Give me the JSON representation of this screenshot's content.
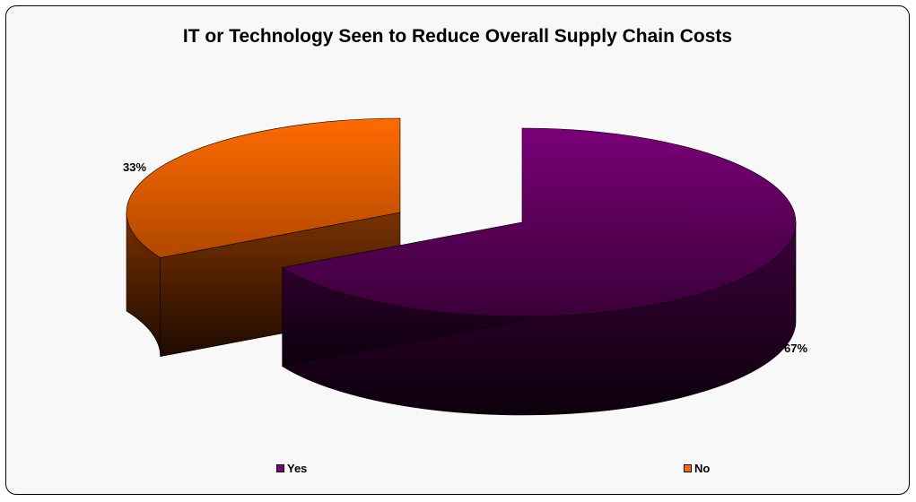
{
  "chart_data": {
    "type": "pie",
    "title": "IT or Technology Seen to Reduce Overall Supply Chain Costs",
    "categories": [
      "Yes",
      "No"
    ],
    "values": [
      67,
      33
    ],
    "data_labels": [
      "67%",
      "33%"
    ],
    "colors": [
      "#800080",
      "#ff6600"
    ],
    "three_d": true,
    "exploded": true,
    "legend_position": "bottom"
  }
}
